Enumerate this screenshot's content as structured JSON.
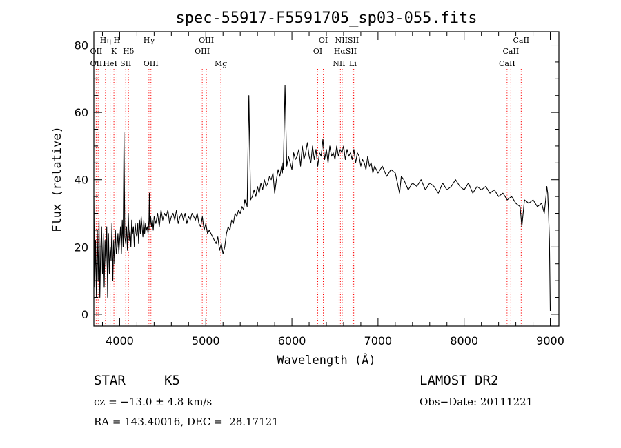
{
  "chart_data": {
    "type": "line",
    "title": "spec-55917-F5591705_sp03-055.fits",
    "xlabel": "Wavelength (Å)",
    "ylabel": "Flux (relative)",
    "xlim": [
      3700,
      9100
    ],
    "ylim": [
      -3.5,
      84
    ],
    "x_ticks": [
      4000,
      5000,
      6000,
      7000,
      8000,
      9000
    ],
    "y_ticks": [
      0,
      20,
      40,
      60,
      80
    ],
    "grid": false,
    "legend": "none",
    "line_color": "#000000",
    "marker_color": "#ff0000",
    "series": [
      {
        "x": [
          3700,
          3710,
          3720,
          3730,
          3740,
          3750,
          3760,
          3770,
          3780,
          3790,
          3800,
          3810,
          3820,
          3830,
          3840,
          3850,
          3860,
          3870,
          3880,
          3890,
          3900,
          3910,
          3920,
          3930,
          3940,
          3950,
          3960,
          3970,
          3980,
          3990,
          4000,
          4010,
          4020,
          4030,
          4040,
          4050,
          4060,
          4070,
          4080,
          4090,
          4100,
          4110,
          4120,
          4130,
          4140,
          4150,
          4160,
          4170,
          4180,
          4190,
          4200,
          4210,
          4220,
          4230,
          4240,
          4250,
          4260,
          4270,
          4280,
          4290,
          4300,
          4310,
          4320,
          4330,
          4340,
          4345,
          4350,
          4360,
          4370,
          4380,
          4390,
          4400,
          4420,
          4440,
          4460,
          4480,
          4500,
          4520,
          4540,
          4560,
          4580,
          4600,
          4620,
          4640,
          4660,
          4680,
          4700,
          4720,
          4740,
          4760,
          4780,
          4800,
          4820,
          4840,
          4860,
          4880,
          4900,
          4920,
          4940,
          4960,
          4980,
          5000,
          5020,
          5040,
          5060,
          5080,
          5100,
          5120,
          5140,
          5160,
          5180,
          5200,
          5220,
          5240,
          5260,
          5280,
          5300,
          5320,
          5340,
          5360,
          5380,
          5400,
          5420,
          5440,
          5450,
          5455,
          5460,
          5480,
          5500,
          5520,
          5540,
          5560,
          5580,
          5600,
          5620,
          5640,
          5660,
          5680,
          5700,
          5720,
          5740,
          5760,
          5780,
          5800,
          5820,
          5840,
          5860,
          5880,
          5890,
          5895,
          5900,
          5920,
          5940,
          5960,
          5980,
          6000,
          6020,
          6040,
          6060,
          6080,
          6100,
          6120,
          6140,
          6160,
          6180,
          6200,
          6220,
          6240,
          6260,
          6280,
          6300,
          6320,
          6340,
          6360,
          6380,
          6400,
          6420,
          6440,
          6460,
          6480,
          6500,
          6520,
          6540,
          6560,
          6580,
          6600,
          6620,
          6640,
          6660,
          6680,
          6700,
          6720,
          6740,
          6760,
          6780,
          6800,
          6820,
          6840,
          6860,
          6880,
          6900,
          6920,
          6940,
          6960,
          6980,
          7000,
          7050,
          7100,
          7150,
          7200,
          7250,
          7270,
          7300,
          7350,
          7400,
          7450,
          7500,
          7550,
          7600,
          7650,
          7700,
          7750,
          7800,
          7850,
          7900,
          7950,
          8000,
          8050,
          8100,
          8150,
          8200,
          8250,
          8300,
          8350,
          8400,
          8450,
          8500,
          8550,
          8600,
          8650,
          8670,
          8700,
          8750,
          8800,
          8850,
          8900,
          8930,
          8950,
          8960,
          8970,
          8980,
          8990,
          9000
        ],
        "values": [
          35,
          8,
          22,
          5,
          25,
          10,
          28,
          5,
          20,
          26,
          12,
          24,
          8,
          22,
          14,
          26,
          5,
          24,
          12,
          20,
          16,
          27,
          10,
          22,
          15,
          25,
          18,
          20,
          24,
          18,
          22,
          26,
          18,
          28,
          20,
          54,
          23,
          21,
          26,
          19,
          30,
          22,
          25,
          20,
          28,
          24,
          26,
          20,
          27,
          24,
          23,
          27,
          21,
          28,
          24,
          29,
          26,
          23,
          28,
          24,
          27,
          25,
          26,
          24,
          28,
          36,
          25,
          29,
          26,
          28,
          25,
          29,
          27,
          30,
          26,
          31,
          28,
          30,
          29,
          31,
          27,
          29,
          30,
          28,
          31,
          27,
          29,
          30,
          28,
          30,
          27,
          29,
          28,
          30,
          29,
          28,
          30,
          27,
          26,
          29,
          25,
          27,
          24,
          25,
          24,
          23,
          22,
          21,
          23,
          19,
          21,
          18,
          20,
          24,
          26,
          25,
          28,
          27,
          30,
          29,
          31,
          30,
          32,
          31,
          34,
          33,
          34,
          32,
          65,
          34,
          35,
          37,
          35,
          38,
          36,
          39,
          37,
          40,
          38,
          39,
          41,
          40,
          42,
          36,
          40,
          43,
          41,
          44,
          42,
          45,
          43,
          68,
          44,
          47,
          45,
          43,
          48,
          46,
          47,
          49,
          44,
          50,
          46,
          48,
          51,
          47,
          45,
          50,
          46,
          49,
          44,
          48,
          47,
          52,
          46,
          49,
          45,
          50,
          47,
          48,
          46,
          50,
          47,
          49,
          48,
          50,
          46,
          49,
          47,
          48,
          46,
          49,
          45,
          48,
          47,
          44,
          46,
          45,
          43,
          47,
          44,
          45,
          42,
          44,
          43,
          42,
          44,
          41,
          43,
          42,
          36,
          41,
          40,
          37,
          39,
          38,
          40,
          37,
          39,
          38,
          36,
          39,
          37,
          38,
          40,
          38,
          37,
          39,
          36,
          38,
          37,
          38,
          36,
          37,
          35,
          36,
          34,
          35,
          33,
          32,
          26,
          34,
          33,
          34,
          32,
          33,
          30,
          35,
          38,
          36,
          30,
          22,
          1
        ]
      }
    ],
    "spectral_lines": [
      {
        "label": "Hη",
        "x": 3835,
        "row": 0
      },
      {
        "label": "H",
        "x": 3968,
        "row": 0
      },
      {
        "label": "Hγ",
        "x": 4340,
        "row": 0
      },
      {
        "label": "OIII",
        "x": 5007,
        "row": 0
      },
      {
        "label": "OI",
        "x": 6364,
        "row": 0
      },
      {
        "label": "NIISII",
        "x": 6640,
        "row": 0
      },
      {
        "label": "CaII",
        "x": 8662,
        "row": 0
      },
      {
        "label": "OII",
        "x": 3727,
        "row": 1
      },
      {
        "label": "K",
        "x": 3933,
        "row": 1
      },
      {
        "label": "Hδ",
        "x": 4102,
        "row": 1
      },
      {
        "label": "OIII",
        "x": 4959,
        "row": 1
      },
      {
        "label": "OI",
        "x": 6300,
        "row": 1
      },
      {
        "label": "HαSII",
        "x": 6620,
        "row": 1
      },
      {
        "label": "CaII",
        "x": 8542,
        "row": 1
      },
      {
        "label": "OII",
        "x": 3727,
        "row": 2
      },
      {
        "label": "HeI",
        "x": 3889,
        "row": 2
      },
      {
        "label": "SII",
        "x": 4070,
        "row": 2
      },
      {
        "label": "OIII",
        "x": 4363,
        "row": 2
      },
      {
        "label": "Mg",
        "x": 5175,
        "row": 2
      },
      {
        "label": "NII",
        "x": 6548,
        "row": 2
      },
      {
        "label": "Li",
        "x": 6708,
        "row": 2
      },
      {
        "label": "CaII",
        "x": 8498,
        "row": 2
      }
    ],
    "marker_positions": [
      3727,
      3750,
      3835,
      3889,
      3933,
      3968,
      4070,
      4102,
      4340,
      4363,
      4959,
      5007,
      5175,
      6300,
      6364,
      6548,
      6563,
      6584,
      6708,
      6716,
      6731,
      8498,
      8542,
      8662
    ]
  },
  "info": {
    "object_class": "STAR",
    "subclass": "K5",
    "cz": "cz = −13.0 ± 4.8 km/s",
    "coords": "RA = 143.40016, DEC =  28.17121",
    "survey": "LAMOST DR2",
    "obs_date": "Obs−Date: 20111221"
  }
}
